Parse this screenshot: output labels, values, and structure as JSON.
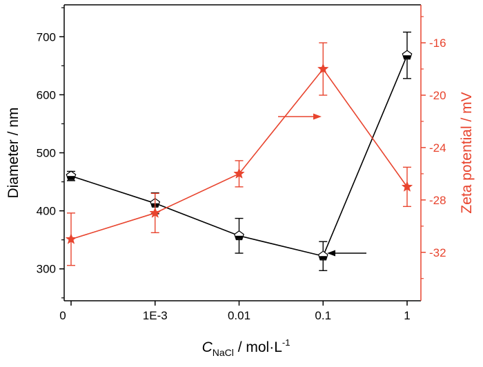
{
  "chart_data": {
    "type": "line",
    "x_categories": [
      "0",
      "1E-3",
      "0.01",
      "0.1",
      "1"
    ],
    "xlabel": {
      "symbol": "C",
      "subscript": "NaCl",
      "unit": " / mol·L",
      "superscript": "-1"
    },
    "y_left": {
      "label": "Diameter / nm",
      "range": [
        245,
        755
      ],
      "ticks": [
        300,
        400,
        500,
        600,
        700
      ],
      "color": "#000000"
    },
    "y_right": {
      "label": "Zeta potential / mV",
      "range": [
        -35.7,
        -13.1
      ],
      "ticks": [
        -32,
        -28,
        -24,
        -20,
        -16
      ],
      "color": "#e8442e"
    },
    "series": [
      {
        "axis": "left",
        "color": "#000000",
        "marker": "pentagon",
        "values": [
          460,
          413,
          357,
          322,
          668
        ],
        "errors": [
          8,
          18,
          30,
          25,
          40
        ]
      },
      {
        "axis": "right",
        "color": "#e8442e",
        "marker": "star",
        "values": [
          -31.0,
          -29.0,
          -26.0,
          -18.0,
          -27.0
        ],
        "errors": [
          2.0,
          1.5,
          1.0,
          2.0,
          1.5
        ]
      }
    ],
    "annotations": [
      {
        "type": "arrow",
        "direction": "right",
        "points_to": "right-axis",
        "color": "#e8442e"
      },
      {
        "type": "arrow",
        "direction": "left",
        "points_to": "left-axis",
        "color": "#000000"
      }
    ],
    "grid": false
  }
}
